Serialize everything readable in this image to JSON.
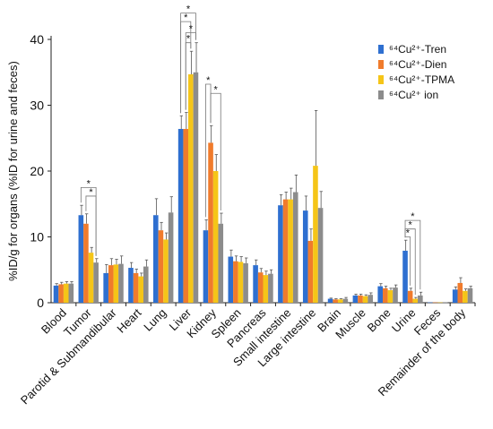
{
  "chart_data": {
    "type": "bar",
    "ylabel": "%ID/g for organs (%ID for urine and feces)",
    "ylim": [
      0,
      40
    ],
    "yticks": [
      0,
      10,
      20,
      30,
      40
    ],
    "grid": false,
    "legend_position": "top-right",
    "categories": [
      "Blood",
      "Tumor",
      "Parotid & Submandibular",
      "Heart",
      "Lung",
      "Liver",
      "Kidney",
      "Spleen",
      "Pancreas",
      "Small intestine",
      "Large intestine",
      "Brain",
      "Muscle",
      "Bone",
      "Urine",
      "Feces",
      "Remainder of the body"
    ],
    "series": [
      {
        "name": "⁶⁴Cu²⁺-Tren",
        "color": "#2E6FD0",
        "values": [
          2.6,
          13.3,
          4.5,
          5.3,
          13.3,
          26.4,
          11.0,
          7.0,
          5.7,
          14.8,
          14.0,
          0.6,
          1.1,
          2.5,
          7.9,
          0.05,
          2.0
        ],
        "errors": [
          0.3,
          1.5,
          1.3,
          0.8,
          2.5,
          2.0,
          1.6,
          1.0,
          0.8,
          1.6,
          2.2,
          0.1,
          0.2,
          0.4,
          1.6,
          0.05,
          0.4
        ]
      },
      {
        "name": "⁶⁴Cu²⁺-Dien",
        "color": "#F07B2C",
        "values": [
          2.8,
          12.0,
          5.7,
          4.5,
          11.0,
          26.4,
          24.3,
          6.3,
          4.6,
          15.7,
          9.4,
          0.5,
          1.1,
          2.2,
          1.8,
          0.05,
          3.0
        ],
        "errors": [
          0.3,
          1.5,
          1.0,
          0.6,
          1.2,
          2.5,
          2.6,
          0.8,
          0.6,
          1.1,
          1.8,
          0.1,
          0.2,
          0.3,
          0.4,
          0.05,
          0.8
        ]
      },
      {
        "name": "⁶⁴Cu²⁺-TPMA",
        "color": "#F5C518",
        "values": [
          2.9,
          7.6,
          5.8,
          4.0,
          9.6,
          34.7,
          20.0,
          6.2,
          4.2,
          15.7,
          20.8,
          0.5,
          1.0,
          1.9,
          0.6,
          0.05,
          1.8
        ],
        "errors": [
          0.3,
          0.8,
          0.8,
          0.5,
          1.0,
          3.5,
          2.5,
          0.8,
          0.6,
          1.7,
          8.4,
          0.1,
          0.2,
          0.3,
          0.2,
          0.05,
          0.3
        ]
      },
      {
        "name": "⁶⁴Cu²⁺ ion",
        "color": "#8C8C8C",
        "values": [
          2.9,
          6.1,
          5.9,
          5.5,
          13.7,
          35.0,
          12.0,
          6.0,
          4.4,
          16.8,
          14.4,
          0.6,
          1.2,
          2.3,
          1.1,
          0.05,
          2.2
        ],
        "errors": [
          0.3,
          0.6,
          1.2,
          1.0,
          2.4,
          4.5,
          1.6,
          0.8,
          0.6,
          2.6,
          2.5,
          0.2,
          0.3,
          0.4,
          0.5,
          0.05,
          0.3
        ]
      }
    ],
    "annotations": [
      {
        "text": "*",
        "category": "Tumor",
        "from_series": 0,
        "to_series": 3,
        "y": 17.5
      },
      {
        "text": "*",
        "category": "Tumor",
        "from_series": 1,
        "to_series": 3,
        "y": 16.2
      },
      {
        "text": "*",
        "category": "Liver",
        "from_series": 0,
        "to_series": 3,
        "y": 44.0
      },
      {
        "text": "*",
        "category": "Liver",
        "from_series": 0,
        "to_series": 2,
        "y": 42.7
      },
      {
        "text": "*",
        "category": "Liver",
        "from_series": 1,
        "to_series": 3,
        "y": 41.0
      },
      {
        "text": "*",
        "category": "Liver",
        "from_series": 1,
        "to_series": 2,
        "y": 39.5
      },
      {
        "text": "*",
        "category": "Kidney",
        "from_series": 0,
        "to_series": 1,
        "y": 33.2
      },
      {
        "text": "*",
        "category": "Kidney",
        "from_series": 1,
        "to_series": 3,
        "y": 31.8
      },
      {
        "text": "*",
        "category": "Urine",
        "from_series": 0,
        "to_series": 3,
        "y": 12.5
      },
      {
        "text": "*",
        "category": "Urine",
        "from_series": 0,
        "to_series": 2,
        "y": 11.2
      },
      {
        "text": "*",
        "category": "Urine",
        "from_series": 0,
        "to_series": 1,
        "y": 10.0
      }
    ]
  }
}
